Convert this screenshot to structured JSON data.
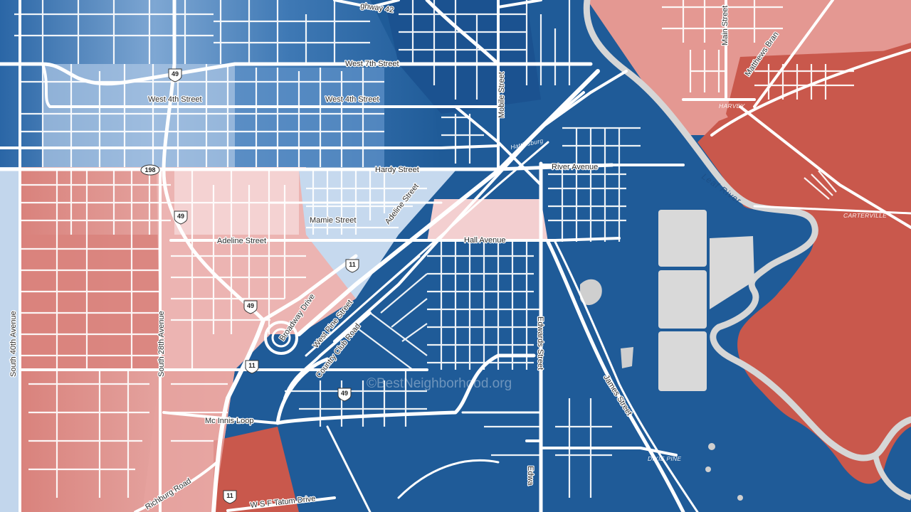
{
  "watermark": "©BestNeighborhood.org",
  "colors": {
    "deep_blue": "#1f5b98",
    "mid_blue": "#2f6ba8",
    "light_blue": "#8fb3d9",
    "pale_blue": "#c2d6ec",
    "pale_red": "#f2c6c6",
    "light_red": "#e49c98",
    "mid_red": "#d9827c",
    "deep_red": "#c9584c",
    "water": "#d9d9d9"
  },
  "streets": {
    "west_7th": "West 7th Street",
    "west_4th_a": "West 4th Street",
    "west_4th_b": "West 4th Street",
    "hardy": "Hardy Street",
    "river_avenue": "River Avenue",
    "mamie": "Mamie Street",
    "adeline_a": "Adeline Street",
    "adeline_b": "Adeline Street",
    "hall": "Hall Avenue",
    "mobile": "Mobile Street",
    "main": "Main Street",
    "matthews": "Matthews Bran",
    "broadway": "Broadway Drive",
    "west_pine": "West Pine Street",
    "country_club": "Country Club Road",
    "edwards": "Edwards Street",
    "edwards_b": "Edwa",
    "james": "James Street",
    "south_40th": "South 40th Avenue",
    "south_28th": "South 28th Avenue",
    "mcinnis": "Mc Innis Loop",
    "richburg": "Richburg Road",
    "tatum": "W S F Tatum Drive",
    "highway_42": "ghway 42"
  },
  "places": {
    "hattiesburg": "Hattiesburg",
    "harvey": "HARVEY",
    "carterville": "CARTERVILLE",
    "dixie_pine": "DIXIE PINE"
  },
  "river": "Leaf River",
  "shields": {
    "us49_a": "49",
    "us49_b": "49",
    "us49_c": "49",
    "us49_d": "49",
    "us11_a": "11",
    "us11_b": "11",
    "us11_c": "11",
    "ms198": "198"
  }
}
